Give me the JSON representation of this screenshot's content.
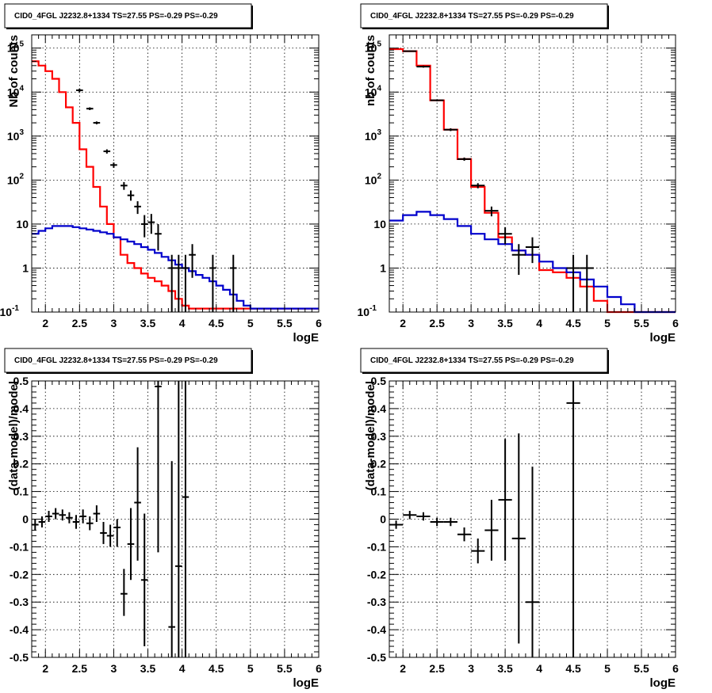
{
  "figure_title": "CID0_4FGL J2232.8+1334 TS=27.55 PS=-0.29 PS=-0.29",
  "colors": {
    "data": "#000000",
    "total_model": "#ff0000",
    "background_model": "#0000cc",
    "grid": "#000000"
  },
  "chart_data": [
    {
      "type": "line",
      "title": "CID0_4FGL J2232.8+1334 TS=27.55 PS=-0.29 PS=-0.29",
      "xlabel": "logE",
      "ylabel": "Nb of counts",
      "xlim": [
        1.8,
        6.0
      ],
      "ylim": [
        0.1,
        200000
      ],
      "yscale": "log",
      "grid": true,
      "xticks": [
        "2",
        "2.5",
        "3",
        "3.5",
        "4",
        "4.5",
        "5",
        "5.5",
        "6"
      ],
      "yticks": [
        "10^-1",
        "1",
        "10",
        "10^2",
        "10^3",
        "10^4",
        "10^5"
      ],
      "series": [
        {
          "name": "",
          "style": "step",
          "color": "#ff0000",
          "bin_edges": [
            1.8,
            1.9,
            2.0,
            2.1,
            2.2,
            2.3,
            2.4,
            2.5,
            2.6,
            2.7,
            2.8,
            2.9,
            3.0,
            3.1,
            3.2,
            3.3,
            3.4,
            3.5,
            3.6,
            3.7,
            3.8,
            3.9,
            4.0,
            4.1,
            4.2,
            4.3,
            4.4,
            4.5,
            4.6,
            4.7,
            4.8,
            4.9,
            5.0,
            5.1,
            5.2,
            5.3,
            5.4,
            5.5,
            5.6,
            5.7,
            5.8,
            5.9,
            6.0
          ],
          "values": [
            50000,
            40000,
            30000,
            20000,
            10000,
            4500,
            2000,
            500,
            200,
            70,
            25,
            10,
            5,
            2,
            1.3,
            1.0,
            0.75,
            0.6,
            0.5,
            0.4,
            0.3,
            0.2,
            0.14,
            0.12,
            0.12,
            0.12,
            0.12,
            0.12,
            0.12,
            0.12,
            0.12,
            0.12,
            0.12,
            0.12,
            0.12,
            0.12,
            0.12,
            0.12,
            0.12,
            0.12,
            0.12,
            0.12
          ]
        },
        {
          "name": "",
          "style": "step",
          "color": "#0000cc",
          "bin_edges": [
            1.8,
            1.9,
            2.0,
            2.1,
            2.2,
            2.3,
            2.4,
            2.5,
            2.6,
            2.7,
            2.8,
            2.9,
            3.0,
            3.1,
            3.2,
            3.3,
            3.4,
            3.5,
            3.6,
            3.7,
            3.8,
            3.9,
            4.0,
            4.1,
            4.2,
            4.3,
            4.4,
            4.5,
            4.6,
            4.7,
            4.8,
            4.9,
            5.0,
            5.1,
            5.2,
            5.3,
            5.4,
            5.5,
            5.6,
            5.7,
            5.8,
            5.9,
            6.0
          ],
          "values": [
            6,
            7,
            8,
            9,
            9,
            9,
            8.5,
            8,
            7.5,
            7,
            6.5,
            6,
            5,
            4.5,
            4,
            3.5,
            3,
            2.6,
            2.2,
            1.8,
            1.5,
            1.2,
            1.0,
            0.85,
            0.7,
            0.6,
            0.5,
            0.4,
            0.32,
            0.25,
            0.18,
            0.14,
            0.12,
            0.12,
            0.12,
            0.12,
            0.12,
            0.12,
            0.12,
            0.12,
            0.12,
            0.12
          ]
        },
        {
          "name": "",
          "style": "errorbar",
          "color": "#000000",
          "points": [
            {
              "x": 2.5,
              "y": 11000,
              "xerr": 0.05,
              "ylo": 10000,
              "yhi": 12000
            },
            {
              "x": 2.65,
              "y": 4200,
              "xerr": 0.05,
              "ylo": 3900,
              "yhi": 4500
            },
            {
              "x": 2.75,
              "y": 2000,
              "xerr": 0.05,
              "ylo": 1850,
              "yhi": 2150
            },
            {
              "x": 2.9,
              "y": 450,
              "xerr": 0.05,
              "ylo": 400,
              "yhi": 500
            },
            {
              "x": 3.0,
              "y": 220,
              "xerr": 0.05,
              "ylo": 190,
              "yhi": 250
            },
            {
              "x": 3.15,
              "y": 75,
              "xerr": 0.05,
              "ylo": 60,
              "yhi": 90
            },
            {
              "x": 3.25,
              "y": 45,
              "xerr": 0.05,
              "ylo": 34,
              "yhi": 58
            },
            {
              "x": 3.35,
              "y": 25,
              "xerr": 0.05,
              "ylo": 17,
              "yhi": 33
            },
            {
              "x": 3.45,
              "y": 10,
              "xerr": 0.05,
              "ylo": 5,
              "yhi": 16
            },
            {
              "x": 3.55,
              "y": 11,
              "xerr": 0.05,
              "ylo": 6,
              "yhi": 17
            },
            {
              "x": 3.65,
              "y": 6,
              "xerr": 0.05,
              "ylo": 2.5,
              "yhi": 10
            },
            {
              "x": 3.85,
              "y": 1,
              "xerr": 0.05,
              "ylo": 0.1,
              "yhi": 2
            },
            {
              "x": 3.95,
              "y": 1,
              "xerr": 0.05,
              "ylo": 0.1,
              "yhi": 2
            },
            {
              "x": 4.05,
              "y": 1,
              "xerr": 0.05,
              "ylo": 0.1,
              "yhi": 2
            },
            {
              "x": 4.15,
              "y": 2,
              "xerr": 0.05,
              "ylo": 0.6,
              "yhi": 3.5
            },
            {
              "x": 4.45,
              "y": 1,
              "xerr": 0.05,
              "ylo": 0.1,
              "yhi": 2
            },
            {
              "x": 4.75,
              "y": 1,
              "xerr": 0.05,
              "ylo": 0.1,
              "yhi": 2
            }
          ]
        }
      ]
    },
    {
      "type": "line",
      "title": "CID0_4FGL J2232.8+1334 TS=27.55 PS=-0.29 PS=-0.29",
      "xlabel": "logE",
      "ylabel": "nb of counts",
      "xlim": [
        1.8,
        6.0
      ],
      "ylim": [
        0.1,
        200000
      ],
      "yscale": "log",
      "grid": true,
      "xticks": [
        "2",
        "2.5",
        "3",
        "3.5",
        "4",
        "4.5",
        "5",
        "5.5",
        "6"
      ],
      "yticks": [
        "10^-1",
        "1",
        "10",
        "10^2",
        "10^3",
        "10^4",
        "10^5"
      ],
      "series": [
        {
          "name": "",
          "style": "step",
          "color": "#ff0000",
          "bin_edges": [
            1.8,
            2.0,
            2.2,
            2.4,
            2.6,
            2.8,
            3.0,
            3.2,
            3.4,
            3.6,
            3.8,
            4.0,
            4.2,
            4.4,
            4.6,
            4.8,
            5.0,
            5.2,
            5.4,
            5.6,
            5.8,
            6.0
          ],
          "values": [
            95000,
            85000,
            40000,
            6500,
            1400,
            300,
            70,
            18,
            5,
            2.5,
            2,
            0.9,
            0.8,
            0.6,
            0.38,
            0.18,
            0.1,
            0.1,
            0.1,
            0.1,
            0.1
          ]
        },
        {
          "name": "",
          "style": "step",
          "color": "#0000cc",
          "bin_edges": [
            1.8,
            2.0,
            2.2,
            2.4,
            2.6,
            2.8,
            3.0,
            3.2,
            3.4,
            3.6,
            3.8,
            4.0,
            4.2,
            4.4,
            4.6,
            4.8,
            5.0,
            5.2,
            5.4,
            5.6,
            5.8,
            6.0
          ],
          "values": [
            12,
            16,
            19,
            16,
            13,
            9,
            6,
            4.5,
            3.5,
            2.5,
            2,
            1.4,
            1.0,
            0.8,
            0.55,
            0.38,
            0.22,
            0.15,
            0.1,
            0.1,
            0.1
          ]
        },
        {
          "name": "",
          "style": "errorbar",
          "color": "#000000",
          "points": [
            {
              "x": 2.1,
              "y": 85000,
              "xerr": 0.1,
              "ylo": 82000,
              "yhi": 88000
            },
            {
              "x": 2.3,
              "y": 38000,
              "xerr": 0.1,
              "ylo": 36000,
              "yhi": 40000
            },
            {
              "x": 2.5,
              "y": 6500,
              "xerr": 0.1,
              "ylo": 6200,
              "yhi": 6800
            },
            {
              "x": 2.7,
              "y": 1400,
              "xerr": 0.1,
              "ylo": 1300,
              "yhi": 1500
            },
            {
              "x": 2.9,
              "y": 300,
              "xerr": 0.1,
              "ylo": 275,
              "yhi": 325
            },
            {
              "x": 3.1,
              "y": 75,
              "xerr": 0.1,
              "ylo": 65,
              "yhi": 85
            },
            {
              "x": 3.3,
              "y": 20,
              "xerr": 0.1,
              "ylo": 15,
              "yhi": 25
            },
            {
              "x": 3.5,
              "y": 6,
              "xerr": 0.1,
              "ylo": 3.5,
              "yhi": 8.5
            },
            {
              "x": 3.7,
              "y": 2,
              "xerr": 0.1,
              "ylo": 0.7,
              "yhi": 3.5
            },
            {
              "x": 3.9,
              "y": 3,
              "xerr": 0.1,
              "ylo": 1.3,
              "yhi": 5
            },
            {
              "x": 4.5,
              "y": 1,
              "xerr": 0.1,
              "ylo": 0.1,
              "yhi": 2
            },
            {
              "x": 4.7,
              "y": 1,
              "xerr": 0.1,
              "ylo": 0.1,
              "yhi": 2
            }
          ]
        }
      ]
    },
    {
      "type": "scatter",
      "title": "CID0_4FGL J2232.8+1334 TS=27.55 PS=-0.29 PS=-0.29",
      "xlabel": "logE",
      "ylabel": "(data-model)/model",
      "xlim": [
        1.8,
        6.0
      ],
      "ylim": [
        -0.5,
        0.5
      ],
      "grid": true,
      "xticks": [
        "2",
        "2.5",
        "3",
        "3.5",
        "4",
        "4.5",
        "5",
        "5.5",
        "6"
      ],
      "yticks": [
        "-0.5",
        "-0.4",
        "-0.3",
        "-0.2",
        "-0.1",
        "0",
        "0.1",
        "0.2",
        "0.3",
        "0.4",
        "0.5"
      ],
      "series": [
        {
          "name": "",
          "style": "errorbar",
          "color": "#000000",
          "points": [
            {
              "x": 1.85,
              "y": -0.02,
              "xerr": 0.05,
              "ylo": -0.04,
              "yhi": 0.0
            },
            {
              "x": 1.95,
              "y": -0.01,
              "xerr": 0.05,
              "ylo": -0.03,
              "yhi": 0.01
            },
            {
              "x": 2.05,
              "y": 0.01,
              "xerr": 0.05,
              "ylo": -0.01,
              "yhi": 0.03
            },
            {
              "x": 2.15,
              "y": 0.02,
              "xerr": 0.05,
              "ylo": 0.0,
              "yhi": 0.04
            },
            {
              "x": 2.25,
              "y": 0.015,
              "xerr": 0.05,
              "ylo": -0.005,
              "yhi": 0.035
            },
            {
              "x": 2.35,
              "y": 0.005,
              "xerr": 0.05,
              "ylo": -0.015,
              "yhi": 0.025
            },
            {
              "x": 2.45,
              "y": -0.01,
              "xerr": 0.05,
              "ylo": -0.035,
              "yhi": 0.015
            },
            {
              "x": 2.55,
              "y": 0.01,
              "xerr": 0.05,
              "ylo": -0.015,
              "yhi": 0.035
            },
            {
              "x": 2.65,
              "y": -0.015,
              "xerr": 0.05,
              "ylo": -0.04,
              "yhi": 0.01
            },
            {
              "x": 2.75,
              "y": 0.02,
              "xerr": 0.05,
              "ylo": -0.01,
              "yhi": 0.05
            },
            {
              "x": 2.85,
              "y": -0.05,
              "xerr": 0.05,
              "ylo": -0.09,
              "yhi": -0.01
            },
            {
              "x": 2.95,
              "y": -0.06,
              "xerr": 0.05,
              "ylo": -0.1,
              "yhi": -0.02
            },
            {
              "x": 3.05,
              "y": -0.03,
              "xerr": 0.05,
              "ylo": -0.1,
              "yhi": 0.0
            },
            {
              "x": 3.15,
              "y": -0.27,
              "xerr": 0.05,
              "ylo": -0.35,
              "yhi": -0.18
            },
            {
              "x": 3.25,
              "y": -0.09,
              "xerr": 0.05,
              "ylo": -0.22,
              "yhi": 0.04
            },
            {
              "x": 3.35,
              "y": 0.06,
              "xerr": 0.05,
              "ylo": -0.15,
              "yhi": 0.26
            },
            {
              "x": 3.45,
              "y": -0.22,
              "xerr": 0.05,
              "ylo": -0.46,
              "yhi": 0.02
            },
            {
              "x": 3.65,
              "y": 0.48,
              "xerr": 0.05,
              "ylo": -0.12,
              "yhi": 0.5
            },
            {
              "x": 3.85,
              "y": -0.39,
              "xerr": 0.05,
              "ylo": -0.5,
              "yhi": 0.21
            },
            {
              "x": 3.95,
              "y": -0.17,
              "xerr": 0.05,
              "ylo": -0.5,
              "yhi": 0.5
            },
            {
              "x": 4.05,
              "y": 0.08,
              "xerr": 0.05,
              "ylo": -0.5,
              "yhi": 0.5
            }
          ]
        }
      ]
    },
    {
      "type": "scatter",
      "title": "CID0_4FGL J2232.8+1334 TS=27.55 PS=-0.29 PS=-0.29",
      "xlabel": "logE",
      "ylabel": "(data-model)/model",
      "xlim": [
        1.8,
        6.0
      ],
      "ylim": [
        -0.5,
        0.5
      ],
      "grid": true,
      "xticks": [
        "2",
        "2.5",
        "3",
        "3.5",
        "4",
        "4.5",
        "5",
        "5.5",
        "6"
      ],
      "yticks": [
        "-0.5",
        "-0.4",
        "-0.3",
        "-0.2",
        "-0.1",
        "0",
        "0.1",
        "0.2",
        "0.3",
        "0.4",
        "0.5"
      ],
      "series": [
        {
          "name": "",
          "style": "errorbar",
          "color": "#000000",
          "points": [
            {
              "x": 1.9,
              "y": -0.02,
              "xerr": 0.1,
              "ylo": -0.035,
              "yhi": -0.005
            },
            {
              "x": 2.1,
              "y": 0.015,
              "xerr": 0.1,
              "ylo": 0.0,
              "yhi": 0.03
            },
            {
              "x": 2.3,
              "y": 0.01,
              "xerr": 0.1,
              "ylo": -0.005,
              "yhi": 0.025
            },
            {
              "x": 2.5,
              "y": -0.01,
              "xerr": 0.1,
              "ylo": -0.025,
              "yhi": 0.005
            },
            {
              "x": 2.7,
              "y": -0.01,
              "xerr": 0.1,
              "ylo": -0.025,
              "yhi": 0.005
            },
            {
              "x": 2.9,
              "y": -0.055,
              "xerr": 0.1,
              "ylo": -0.08,
              "yhi": -0.03
            },
            {
              "x": 3.1,
              "y": -0.115,
              "xerr": 0.1,
              "ylo": -0.16,
              "yhi": -0.07
            },
            {
              "x": 3.3,
              "y": -0.04,
              "xerr": 0.1,
              "ylo": -0.15,
              "yhi": 0.07
            },
            {
              "x": 3.5,
              "y": 0.07,
              "xerr": 0.1,
              "ylo": -0.15,
              "yhi": 0.29
            },
            {
              "x": 3.7,
              "y": -0.07,
              "xerr": 0.1,
              "ylo": -0.45,
              "yhi": 0.31
            },
            {
              "x": 3.9,
              "y": -0.3,
              "xerr": 0.1,
              "ylo": -0.5,
              "yhi": 0.19
            },
            {
              "x": 4.5,
              "y": 0.42,
              "xerr": 0.1,
              "ylo": -0.5,
              "yhi": 0.5
            }
          ]
        }
      ]
    }
  ]
}
